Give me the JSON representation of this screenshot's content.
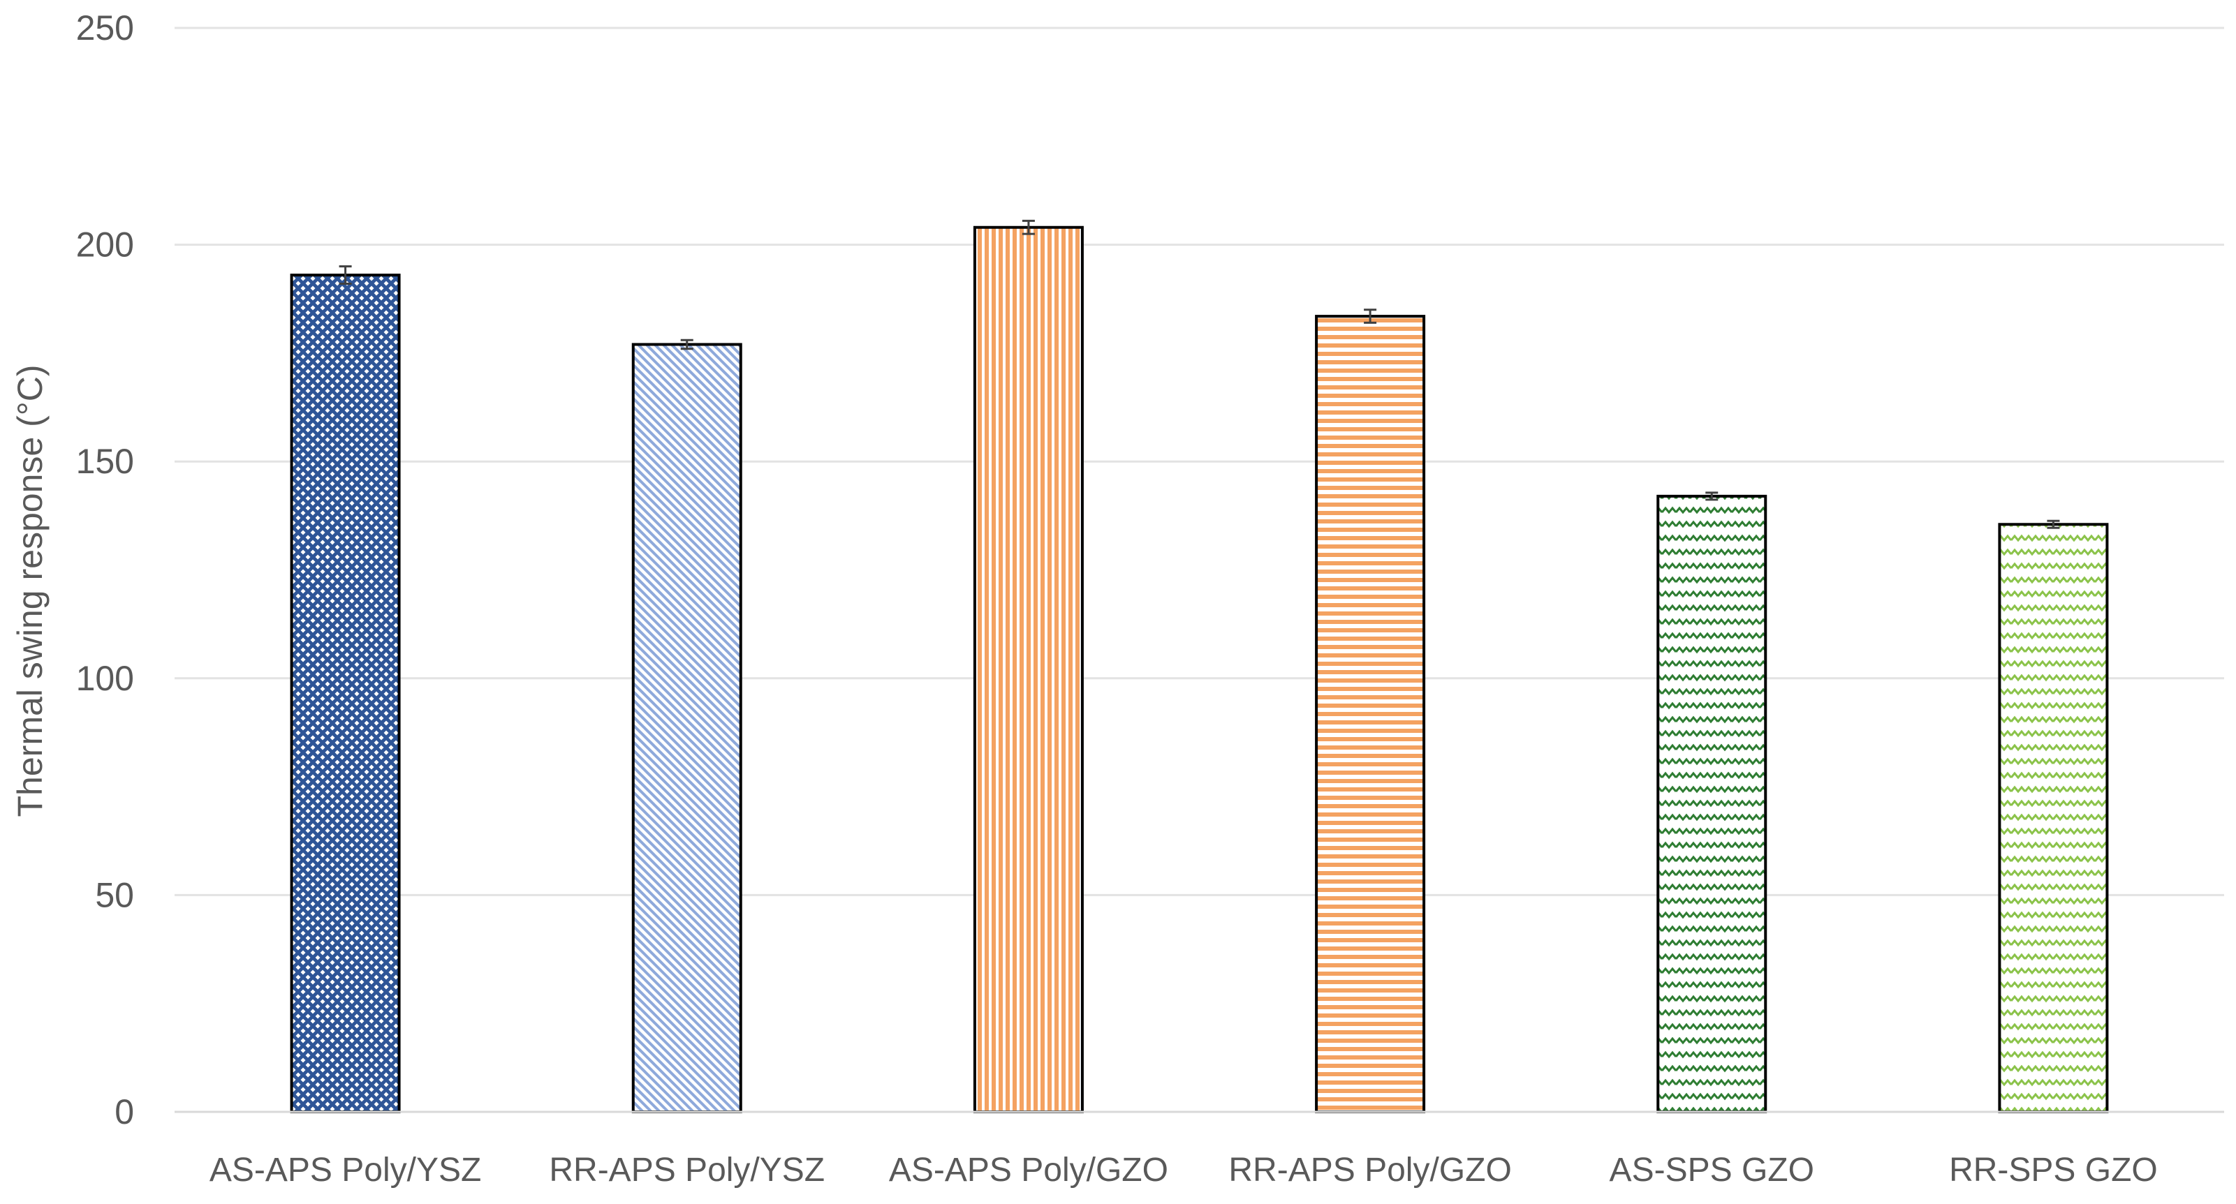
{
  "chart_data": {
    "type": "bar",
    "title": "",
    "xlabel": "",
    "ylabel": "Thermal swing response (°C)",
    "ylim": [
      0,
      250
    ],
    "yticks": [
      0,
      50,
      100,
      150,
      200,
      250
    ],
    "grid": true,
    "legend": "none",
    "categories": [
      "AS-APS Poly/YSZ",
      "RR-APS Poly/YSZ",
      "AS-APS Poly/GZO",
      "RR-APS Poly/GZO",
      "AS-SPS GZO",
      "RR-SPS GZO"
    ],
    "values": [
      193,
      177,
      204,
      183.5,
      142,
      135.5
    ],
    "errors": [
      2,
      1,
      1.5,
      1.5,
      0.8,
      0.8
    ],
    "colors": [
      "#2E5597",
      "#8EA9DB",
      "#F4A261",
      "#F4A261",
      "#2E7D32",
      "#8BC34A"
    ],
    "patterns": [
      "checker",
      "diagonal",
      "vertical",
      "horizontal",
      "zigzag",
      "zigzag"
    ]
  }
}
